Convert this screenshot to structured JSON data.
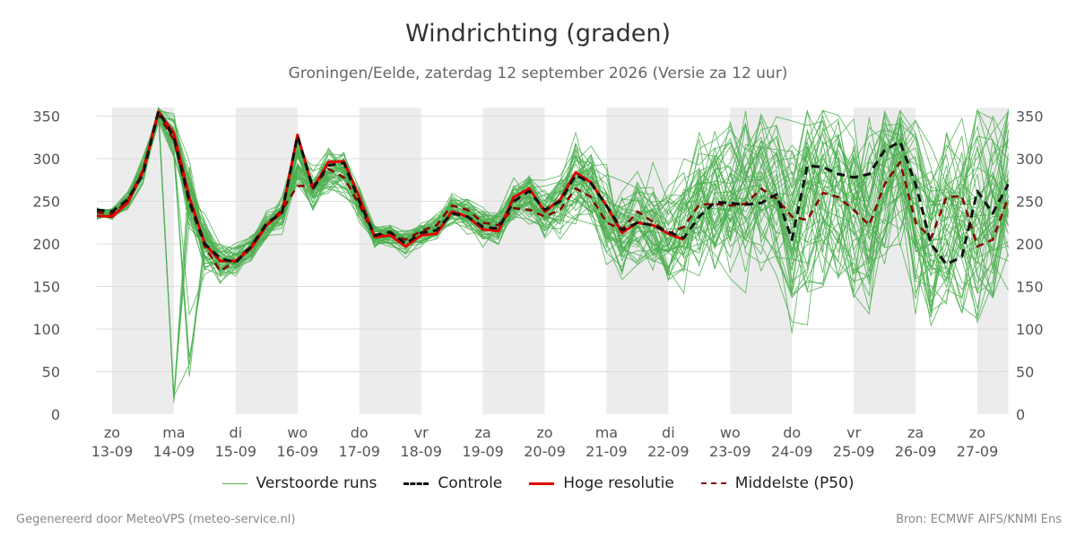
{
  "header": {
    "title": "Windrichting (graden)",
    "subtitle": "Groningen/Eelde, zaterdag 12 september 2026 (Versie za 12 uur)"
  },
  "legend": {
    "runs": "Verstoorde runs",
    "control": "Controle",
    "hires": "Hoge resolutie",
    "p50": "Middelste (P50)"
  },
  "footer": {
    "left": "Gegenereerd door MeteoVPS (meteo-service.nl)",
    "right": "Bron: ECMWF AIFS/KNMI Ens"
  },
  "colors": {
    "runs": "#4caf50",
    "control": "#111111",
    "hires": "#e00000",
    "p50": "#8b0000",
    "weekend_band": "#ececec",
    "grid": "#dddddd"
  },
  "chart_data": {
    "type": "line",
    "title": "Windrichting (graden)",
    "subtitle": "Groningen/Eelde, zaterdag 12 september 2026 (Versie za 12 uur)",
    "ylim": [
      0,
      360
    ],
    "yticks": [
      0,
      50,
      100,
      150,
      200,
      250,
      300,
      350
    ],
    "xlim": [
      -0.25,
      14.5
    ],
    "x_ticks": [
      {
        "day": "zo",
        "date": "13-09"
      },
      {
        "day": "ma",
        "date": "14-09"
      },
      {
        "day": "di",
        "date": "15-09"
      },
      {
        "day": "wo",
        "date": "16-09"
      },
      {
        "day": "do",
        "date": "17-09"
      },
      {
        "day": "vr",
        "date": "18-09"
      },
      {
        "day": "za",
        "date": "19-09"
      },
      {
        "day": "zo",
        "date": "20-09"
      },
      {
        "day": "ma",
        "date": "21-09"
      },
      {
        "day": "di",
        "date": "22-09"
      },
      {
        "day": "wo",
        "date": "23-09"
      },
      {
        "day": "do",
        "date": "24-09"
      },
      {
        "day": "vr",
        "date": "25-09"
      },
      {
        "day": "za",
        "date": "26-09"
      },
      {
        "day": "zo",
        "date": "27-09"
      }
    ],
    "shaded_bands": [
      [
        0,
        1
      ],
      [
        2,
        3
      ],
      [
        4,
        5
      ],
      [
        6,
        7
      ],
      [
        8,
        9
      ],
      [
        10,
        11
      ],
      [
        12,
        13
      ],
      [
        14,
        14.5
      ]
    ],
    "grid": true,
    "dual_y_axis": true,
    "legend_position": "bottom",
    "series": [
      {
        "name": "Hoge resolutie",
        "style": "solid-red",
        "x": [
          -0.25,
          0,
          0.25,
          0.5,
          0.75,
          1.0,
          1.25,
          1.5,
          1.75,
          2.0,
          2.25,
          2.5,
          2.75,
          3.0,
          3.25,
          3.5,
          3.75,
          4.0,
          4.25,
          4.5,
          4.75,
          5.0,
          5.25,
          5.5,
          5.75,
          6.0,
          6.25,
          6.5,
          6.75,
          7.0,
          7.25,
          7.5,
          7.75,
          8.0,
          8.25,
          8.5,
          8.75,
          9.0,
          9.25
        ],
        "values": [
          233,
          232,
          248,
          285,
          355,
          330,
          255,
          200,
          180,
          180,
          195,
          222,
          237,
          328,
          265,
          296,
          297,
          255,
          208,
          210,
          197,
          210,
          212,
          238,
          232,
          217,
          215,
          255,
          265,
          238,
          252,
          284,
          272,
          245,
          213,
          225,
          222,
          212,
          205
        ]
      },
      {
        "name": "Controle",
        "style": "dashed-black",
        "x": [
          -0.25,
          0,
          0.25,
          0.5,
          0.75,
          1.0,
          1.25,
          1.5,
          1.75,
          2.0,
          2.25,
          2.5,
          2.75,
          3.0,
          3.25,
          3.5,
          3.75,
          4.0,
          4.25,
          4.5,
          4.75,
          5.0,
          5.25,
          5.5,
          5.75,
          6.0,
          6.25,
          6.5,
          6.75,
          7.0,
          7.25,
          7.5,
          7.75,
          8.0,
          8.25,
          8.5,
          8.75,
          9.0,
          9.25,
          9.5,
          9.75,
          10.0,
          10.25,
          10.5,
          10.75,
          11.0,
          11.25,
          11.5,
          11.75,
          12.0,
          12.25,
          12.5,
          12.75,
          13.0,
          13.25,
          13.5,
          13.75,
          14.0,
          14.25,
          14.5
        ],
        "values": [
          240,
          238,
          252,
          282,
          356,
          325,
          250,
          200,
          183,
          178,
          197,
          224,
          237,
          327,
          265,
          292,
          295,
          250,
          210,
          214,
          200,
          213,
          216,
          236,
          232,
          220,
          218,
          250,
          262,
          240,
          250,
          281,
          271,
          245,
          216,
          225,
          222,
          214,
          207,
          232,
          249,
          248,
          246,
          248,
          258,
          205,
          292,
          290,
          282,
          278,
          282,
          310,
          320,
          270,
          200,
          176,
          185,
          262,
          236,
          270
        ]
      },
      {
        "name": "Middelste (P50)",
        "style": "dashed-darkred",
        "x": [
          -0.25,
          0,
          0.25,
          0.5,
          0.75,
          1.0,
          1.25,
          1.5,
          1.75,
          2.0,
          2.25,
          2.5,
          2.75,
          3.0,
          3.25,
          3.5,
          3.75,
          4.0,
          4.25,
          4.5,
          4.75,
          5.0,
          5.25,
          5.5,
          5.75,
          6.0,
          6.25,
          6.5,
          6.75,
          7.0,
          7.25,
          7.5,
          7.75,
          8.0,
          8.25,
          8.5,
          8.75,
          9.0,
          9.25,
          9.5,
          9.75,
          10.0,
          10.25,
          10.5,
          10.75,
          11.0,
          11.25,
          11.5,
          11.75,
          12.0,
          12.25,
          12.5,
          12.75,
          13.0,
          13.25,
          13.5,
          13.75,
          14.0,
          14.25,
          14.5
        ],
        "values": [
          237,
          235,
          250,
          287,
          352,
          322,
          248,
          197,
          168,
          180,
          198,
          222,
          240,
          268,
          268,
          288,
          278,
          246,
          208,
          212,
          205,
          215,
          222,
          245,
          240,
          225,
          222,
          242,
          240,
          232,
          240,
          265,
          255,
          225,
          217,
          238,
          226,
          212,
          220,
          246,
          247,
          245,
          247,
          265,
          253,
          232,
          228,
          260,
          255,
          240,
          222,
          270,
          296,
          225,
          207,
          255,
          256,
          197,
          205,
          255
        ]
      }
    ],
    "ensemble_runs": {
      "name": "Verstoorde runs",
      "count": 50,
      "x_start": -0.25,
      "x_step": 0.25,
      "base_values": [
        236,
        235,
        250,
        285,
        354,
        326,
        252,
        200,
        178,
        180,
        196,
        222,
        238,
        300,
        266,
        290,
        288,
        250,
        210,
        212,
        202,
        212,
        218,
        240,
        234,
        222,
        220,
        248,
        252,
        236,
        246,
        272,
        262,
        235,
        216,
        230,
        224,
        213,
        212,
        240,
        246,
        245,
        246,
        255,
        252,
        225,
        250,
        265,
        262,
        250,
        240,
        285,
        300,
        240,
        205,
        225,
        230,
        225,
        225,
        255
      ],
      "spread": [
        8,
        8,
        10,
        14,
        18,
        30,
        45,
        40,
        25,
        18,
        15,
        18,
        22,
        30,
        30,
        30,
        30,
        25,
        15,
        14,
        14,
        15,
        18,
        20,
        20,
        20,
        22,
        28,
        30,
        32,
        40,
        50,
        55,
        60,
        60,
        65,
        70,
        75,
        80,
        85,
        90,
        95,
        100,
        105,
        110,
        115,
        115,
        120,
        120,
        120,
        120,
        120,
        120,
        120,
        120,
        120,
        120,
        120,
        120,
        120
      ]
    }
  }
}
